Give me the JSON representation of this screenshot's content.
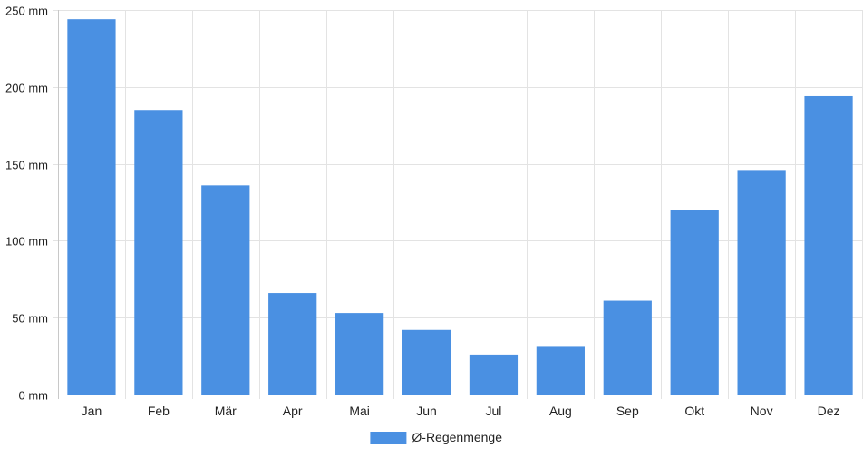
{
  "chart_data": {
    "type": "bar",
    "title": "",
    "xlabel": "",
    "ylabel": "",
    "categories": [
      "Jan",
      "Feb",
      "Mär",
      "Apr",
      "Mai",
      "Jun",
      "Jul",
      "Aug",
      "Sep",
      "Okt",
      "Nov",
      "Dez"
    ],
    "series": [
      {
        "name": "Ø-Regenmenge",
        "color": "#4a90e2",
        "values": [
          244,
          185,
          136,
          66,
          53,
          42,
          26,
          31,
          61,
          120,
          146,
          194
        ]
      }
    ],
    "ylim": [
      0,
      250
    ],
    "yticks": [
      0,
      50,
      100,
      150,
      200,
      250
    ],
    "ytick_suffix": " mm",
    "grid": true,
    "legend_position": "bottom-center"
  }
}
